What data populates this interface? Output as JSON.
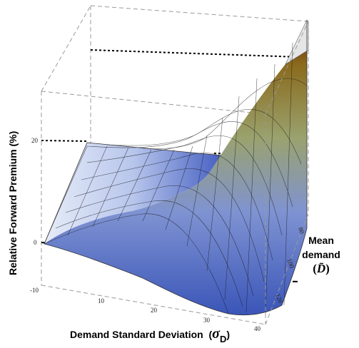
{
  "chart_data": {
    "type": "surface3d",
    "title": "",
    "zlabel": "Relative Forward Premium (%)",
    "xlabel": "Demand Standard Deviation",
    "xlabel_symbol": "σ",
    "xlabel_symbol_sub": "D",
    "ylabel_line1": "Mean",
    "ylabel_line2": "demand",
    "ylabel_open": "(",
    "ylabel_symbol": "D̄",
    "ylabel_close": ")",
    "x_ticks": [
      "10",
      "20",
      "30",
      "40"
    ],
    "y_ticks": [
      "80",
      "100",
      "120"
    ],
    "z_ticks": [
      "-10",
      "0",
      "20"
    ],
    "xlim": [
      0,
      40
    ],
    "ylim": [
      70,
      130
    ],
    "zlim": [
      -15,
      70
    ],
    "surface_profile": {
      "sigma": [
        0,
        5,
        10,
        15,
        20,
        25,
        30,
        35,
        40
      ],
      "premium": [
        0,
        -2,
        -6,
        -10,
        -12,
        -10,
        2,
        25,
        55
      ]
    },
    "colors": {
      "low": "#3a55b8",
      "mid": "#c6d2ee",
      "high": "#8a6a1c",
      "peak": "#6a1414"
    }
  }
}
